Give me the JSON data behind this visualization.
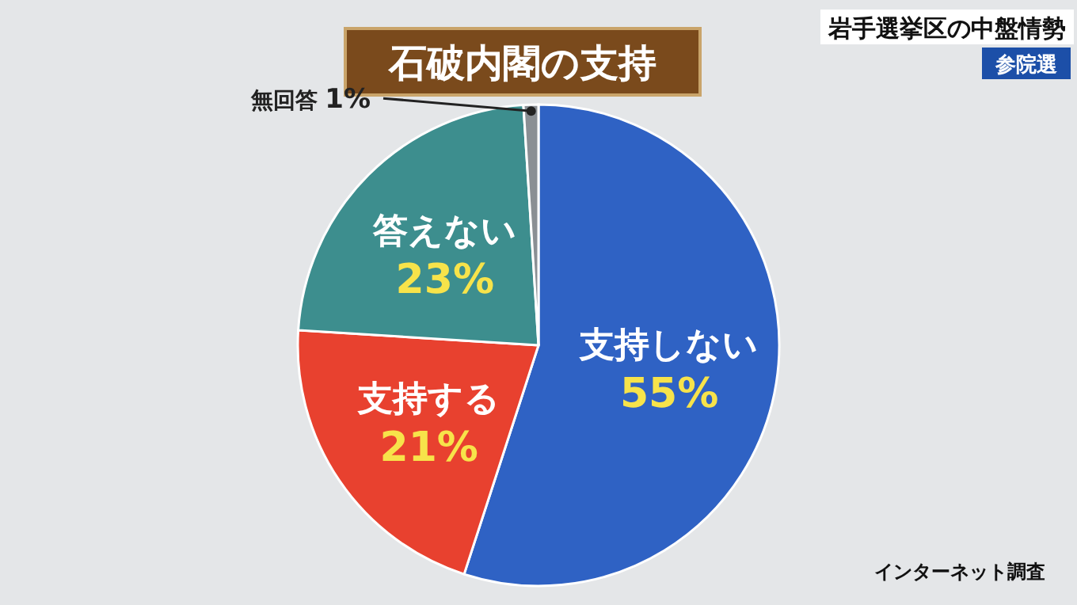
{
  "chart_data": {
    "type": "pie",
    "title": "石破内閣の支持",
    "subtitle": "岩手選挙区の中盤情勢",
    "categories": [
      "支持しない",
      "支持する",
      "答えない",
      "無回答"
    ],
    "values": [
      55,
      21,
      23,
      1
    ],
    "colors": [
      "#2f62c4",
      "#e8412f",
      "#3d8e8e",
      "#8a8f94"
    ],
    "value_labels": [
      "55%",
      "21%",
      "23%",
      "1%"
    ],
    "annotations": [
      "参院選",
      "インターネット調査"
    ]
  }
}
